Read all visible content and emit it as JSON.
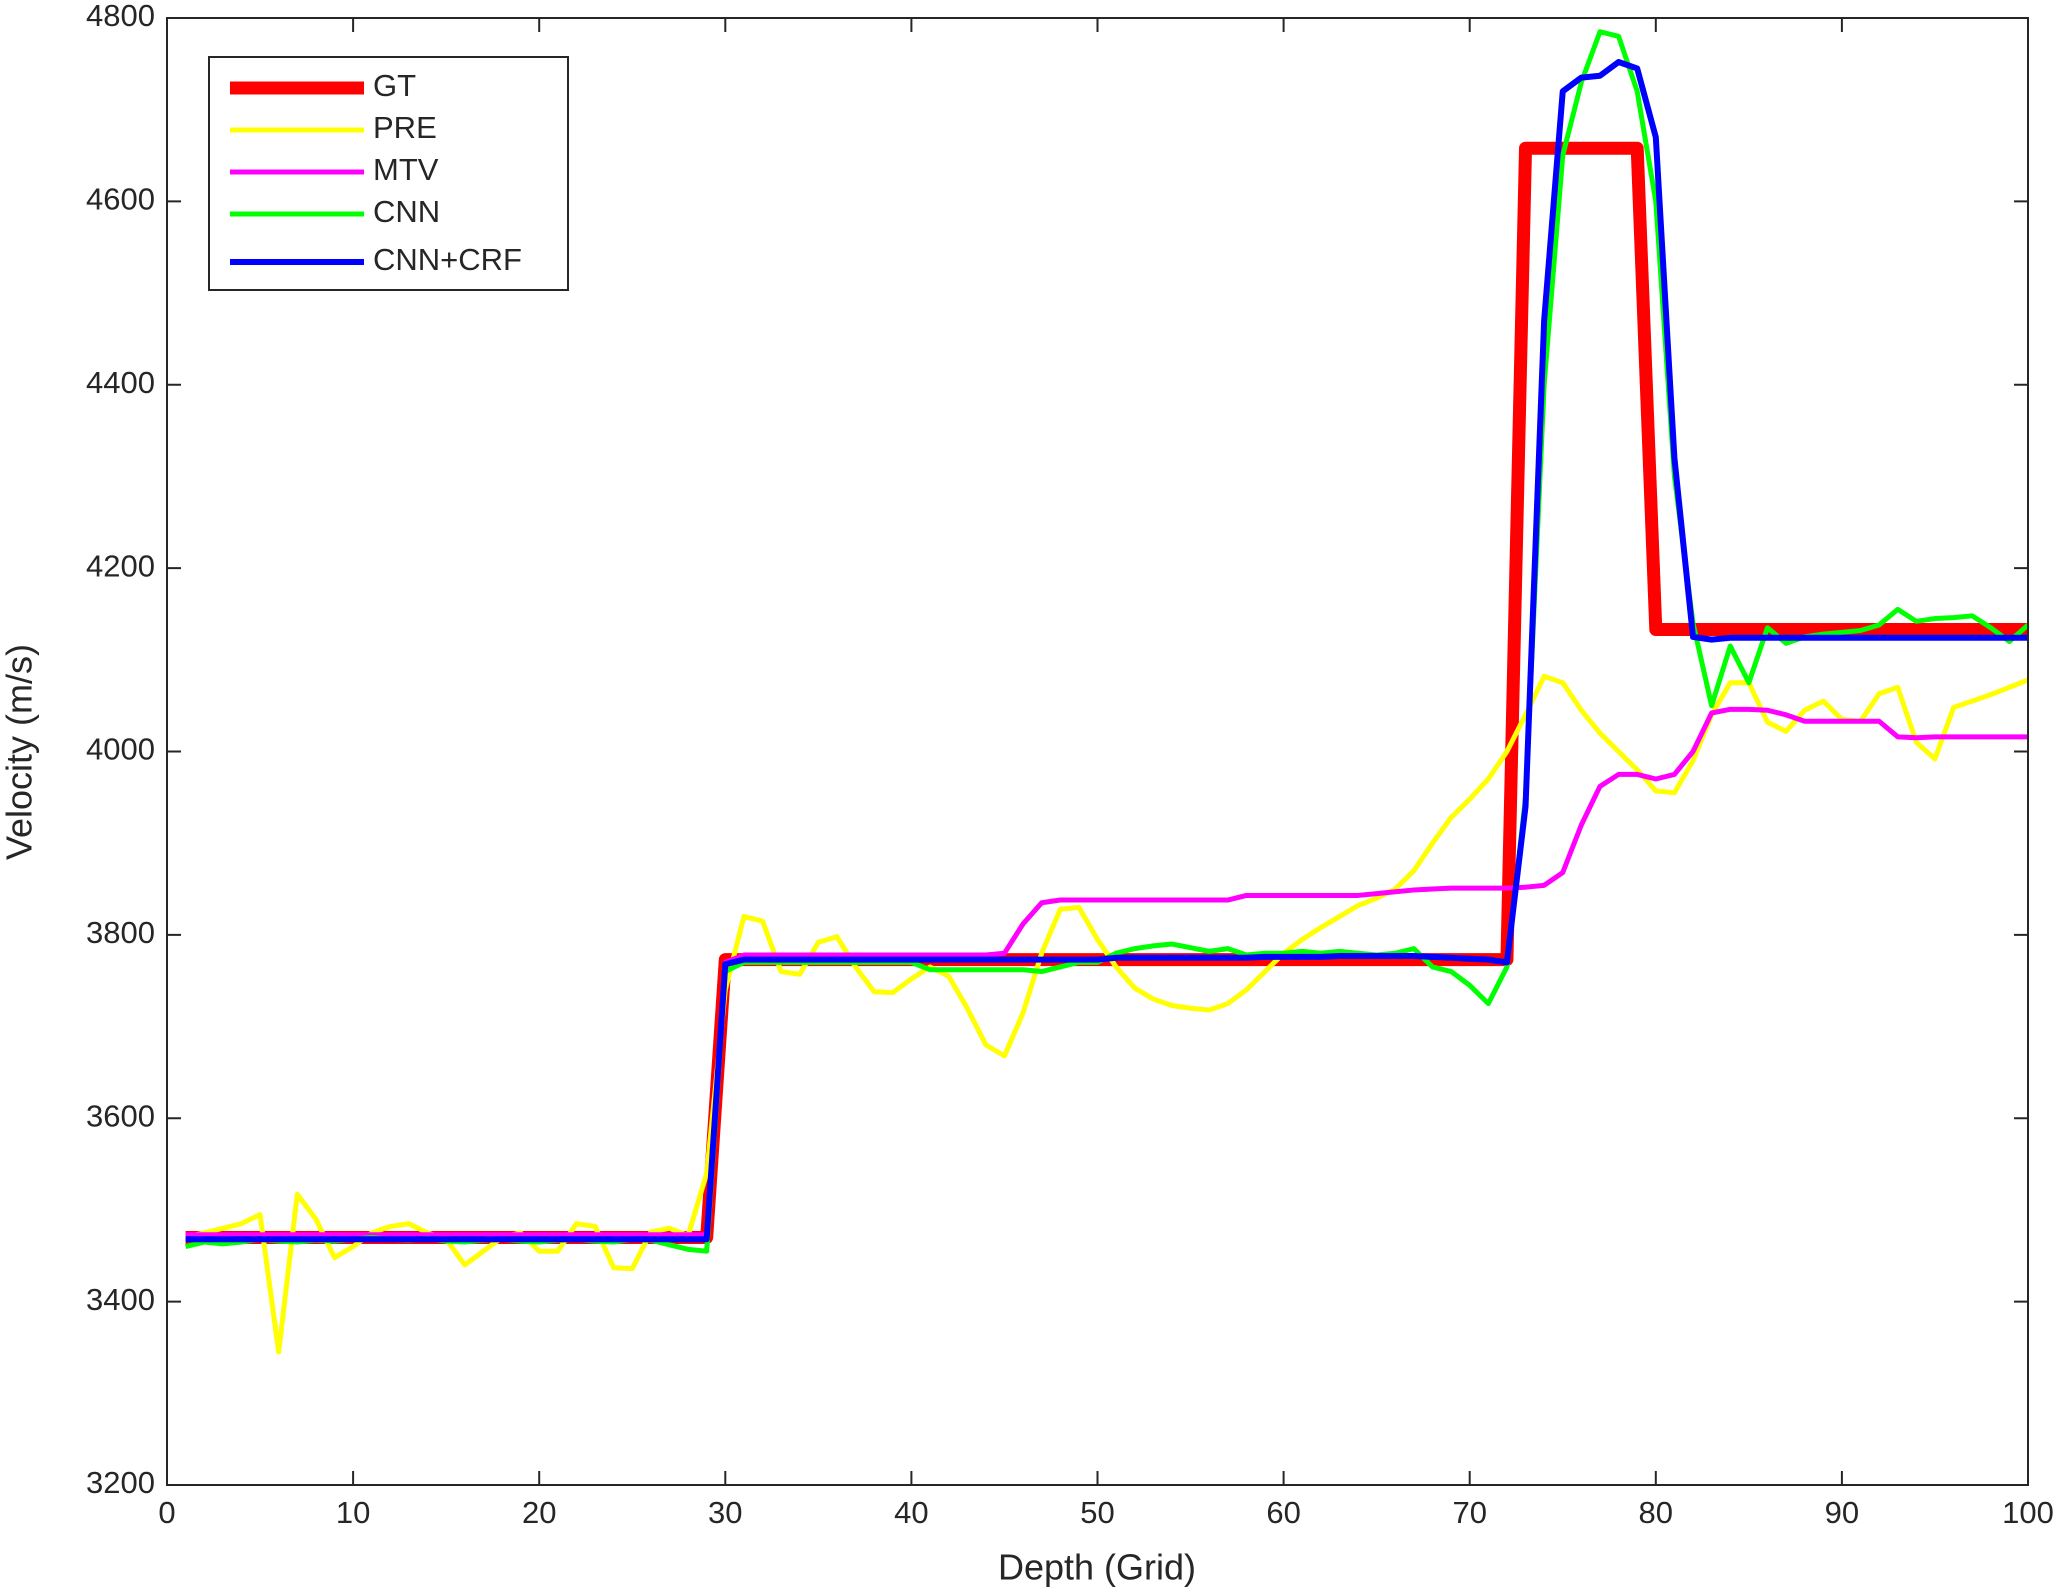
{
  "chart_data": {
    "type": "line",
    "x_label": "Depth (Grid)",
    "y_label": "Velocity (m/s)",
    "xlim": [
      0,
      100
    ],
    "xticks": [
      0,
      10,
      20,
      30,
      40,
      50,
      60,
      70,
      80,
      90,
      100
    ],
    "ylim": [
      3200,
      4800
    ],
    "yticks": [
      3200,
      3400,
      3600,
      3800,
      4000,
      4200,
      4400,
      4600,
      4800
    ],
    "legend": "upper left",
    "x": [
      1,
      2,
      3,
      4,
      5,
      6,
      7,
      8,
      9,
      10,
      11,
      12,
      13,
      14,
      15,
      16,
      17,
      18,
      19,
      20,
      21,
      22,
      23,
      24,
      25,
      26,
      27,
      28,
      29,
      30,
      31,
      32,
      33,
      34,
      35,
      36,
      37,
      38,
      39,
      40,
      41,
      42,
      43,
      44,
      45,
      46,
      47,
      48,
      49,
      50,
      51,
      52,
      53,
      54,
      55,
      56,
      57,
      58,
      59,
      60,
      61,
      62,
      63,
      64,
      65,
      66,
      67,
      68,
      69,
      70,
      71,
      72,
      73,
      74,
      75,
      76,
      77,
      78,
      79,
      80,
      81,
      82,
      83,
      84,
      85,
      86,
      87,
      88,
      89,
      90,
      91,
      92,
      93,
      94,
      95,
      96,
      97,
      98,
      99,
      100
    ],
    "series": [
      {
        "name": "GT",
        "color": "#ff0000",
        "width": 13,
        "values": [
          3470,
          3470,
          3470,
          3470,
          3470,
          3470,
          3470,
          3470,
          3470,
          3470,
          3470,
          3470,
          3470,
          3470,
          3470,
          3470,
          3470,
          3470,
          3470,
          3470,
          3470,
          3470,
          3470,
          3470,
          3470,
          3470,
          3470,
          3470,
          3470,
          3773,
          3773,
          3773,
          3773,
          3773,
          3773,
          3773,
          3773,
          3773,
          3773,
          3773,
          3773,
          3773,
          3773,
          3773,
          3773,
          3773,
          3773,
          3773,
          3773,
          3773,
          3773,
          3773,
          3773,
          3773,
          3773,
          3773,
          3773,
          3773,
          3773,
          3773,
          3773,
          3773,
          3773,
          3773,
          3773,
          3773,
          3773,
          3773,
          3773,
          3773,
          3773,
          3773,
          4658,
          4658,
          4658,
          4658,
          4658,
          4658,
          4658,
          4133,
          4133,
          4133,
          4133,
          4133,
          4133,
          4133,
          4133,
          4133,
          4133,
          4133,
          4133,
          4133,
          4133,
          4133,
          4133,
          4133,
          4133,
          4133,
          4133,
          4133
        ]
      },
      {
        "name": "PRE",
        "color": "#ffff00",
        "width": 5,
        "values": [
          3470,
          3475,
          3480,
          3485,
          3495,
          3345,
          3517,
          3490,
          3448,
          3460,
          3475,
          3482,
          3485,
          3475,
          3468,
          3440,
          3455,
          3470,
          3475,
          3455,
          3455,
          3485,
          3482,
          3437,
          3436,
          3476,
          3480,
          3472,
          3540,
          3740,
          3820,
          3815,
          3760,
          3757,
          3792,
          3798,
          3765,
          3738,
          3737,
          3752,
          3765,
          3755,
          3720,
          3680,
          3668,
          3715,
          3780,
          3828,
          3830,
          3795,
          3765,
          3742,
          3730,
          3723,
          3720,
          3718,
          3725,
          3740,
          3760,
          3780,
          3795,
          3808,
          3820,
          3832,
          3840,
          3850,
          3870,
          3900,
          3928,
          3948,
          3970,
          4000,
          4040,
          4082,
          4075,
          4045,
          4020,
          4000,
          3980,
          3957,
          3955,
          3990,
          4040,
          4075,
          4075,
          4032,
          4022,
          4045,
          4055,
          4035,
          4033,
          4063,
          4070,
          4010,
          3992,
          4048,
          4055,
          4062,
          4070,
          4078
        ]
      },
      {
        "name": "MTV",
        "color": "#ff00ff",
        "width": 5,
        "values": [
          3473,
          3473,
          3473,
          3473,
          3473,
          3473,
          3473,
          3473,
          3473,
          3473,
          3473,
          3473,
          3473,
          3473,
          3473,
          3473,
          3473,
          3473,
          3473,
          3473,
          3473,
          3473,
          3473,
          3473,
          3473,
          3473,
          3473,
          3473,
          3473,
          3770,
          3778,
          3778,
          3778,
          3778,
          3778,
          3778,
          3778,
          3778,
          3778,
          3778,
          3778,
          3778,
          3778,
          3778,
          3780,
          3812,
          3835,
          3838,
          3838,
          3838,
          3838,
          3838,
          3838,
          3838,
          3838,
          3838,
          3838,
          3843,
          3843,
          3843,
          3843,
          3843,
          3843,
          3843,
          3845,
          3847,
          3849,
          3850,
          3851,
          3851,
          3851,
          3851,
          3852,
          3854,
          3868,
          3920,
          3962,
          3975,
          3975,
          3970,
          3975,
          4000,
          4042,
          4046,
          4046,
          4045,
          4040,
          4033,
          4033,
          4033,
          4033,
          4033,
          4016,
          4015,
          4016,
          4016,
          4016,
          4016,
          4016,
          4016
        ]
      },
      {
        "name": "CNN",
        "color": "#00ff00",
        "width": 5,
        "values": [
          3460,
          3465,
          3463,
          3465,
          3468,
          3466,
          3465,
          3467,
          3466,
          3468,
          3470,
          3468,
          3467,
          3469,
          3466,
          3465,
          3467,
          3468,
          3466,
          3465,
          3467,
          3468,
          3466,
          3465,
          3468,
          3467,
          3462,
          3457,
          3455,
          3760,
          3770,
          3770,
          3770,
          3770,
          3770,
          3770,
          3770,
          3770,
          3770,
          3770,
          3762,
          3762,
          3762,
          3762,
          3762,
          3762,
          3760,
          3765,
          3770,
          3770,
          3780,
          3785,
          3788,
          3790,
          3786,
          3782,
          3785,
          3778,
          3780,
          3780,
          3782,
          3780,
          3782,
          3780,
          3778,
          3780,
          3785,
          3765,
          3760,
          3745,
          3725,
          3765,
          3950,
          4400,
          4650,
          4730,
          4785,
          4780,
          4720,
          4600,
          4300,
          4140,
          4050,
          4115,
          4075,
          4135,
          4118,
          4125,
          4128,
          4130,
          4132,
          4138,
          4155,
          4142,
          4145,
          4146,
          4148,
          4135,
          4120,
          4138
        ]
      },
      {
        "name": "CNN+CRF",
        "color": "#0000ff",
        "width": 6,
        "values": [
          3468,
          3468,
          3468,
          3468,
          3468,
          3468,
          3468,
          3468,
          3468,
          3468,
          3468,
          3468,
          3468,
          3468,
          3468,
          3468,
          3468,
          3468,
          3468,
          3468,
          3468,
          3468,
          3468,
          3468,
          3468,
          3468,
          3468,
          3468,
          3468,
          3768,
          3773,
          3773,
          3773,
          3773,
          3773,
          3773,
          3773,
          3773,
          3773,
          3773,
          3773,
          3773,
          3773,
          3773,
          3773,
          3773,
          3773,
          3773,
          3773,
          3773,
          3775,
          3775,
          3775,
          3775,
          3775,
          3775,
          3775,
          3775,
          3776,
          3776,
          3776,
          3776,
          3777,
          3777,
          3777,
          3777,
          3777,
          3776,
          3775,
          3774,
          3773,
          3770,
          3940,
          4470,
          4720,
          4735,
          4737,
          4752,
          4745,
          4670,
          4320,
          4125,
          4122,
          4124,
          4124,
          4124,
          4124,
          4124,
          4124,
          4124,
          4124,
          4124,
          4124,
          4124,
          4124,
          4124,
          4124,
          4124,
          4124,
          4124
        ]
      }
    ]
  }
}
